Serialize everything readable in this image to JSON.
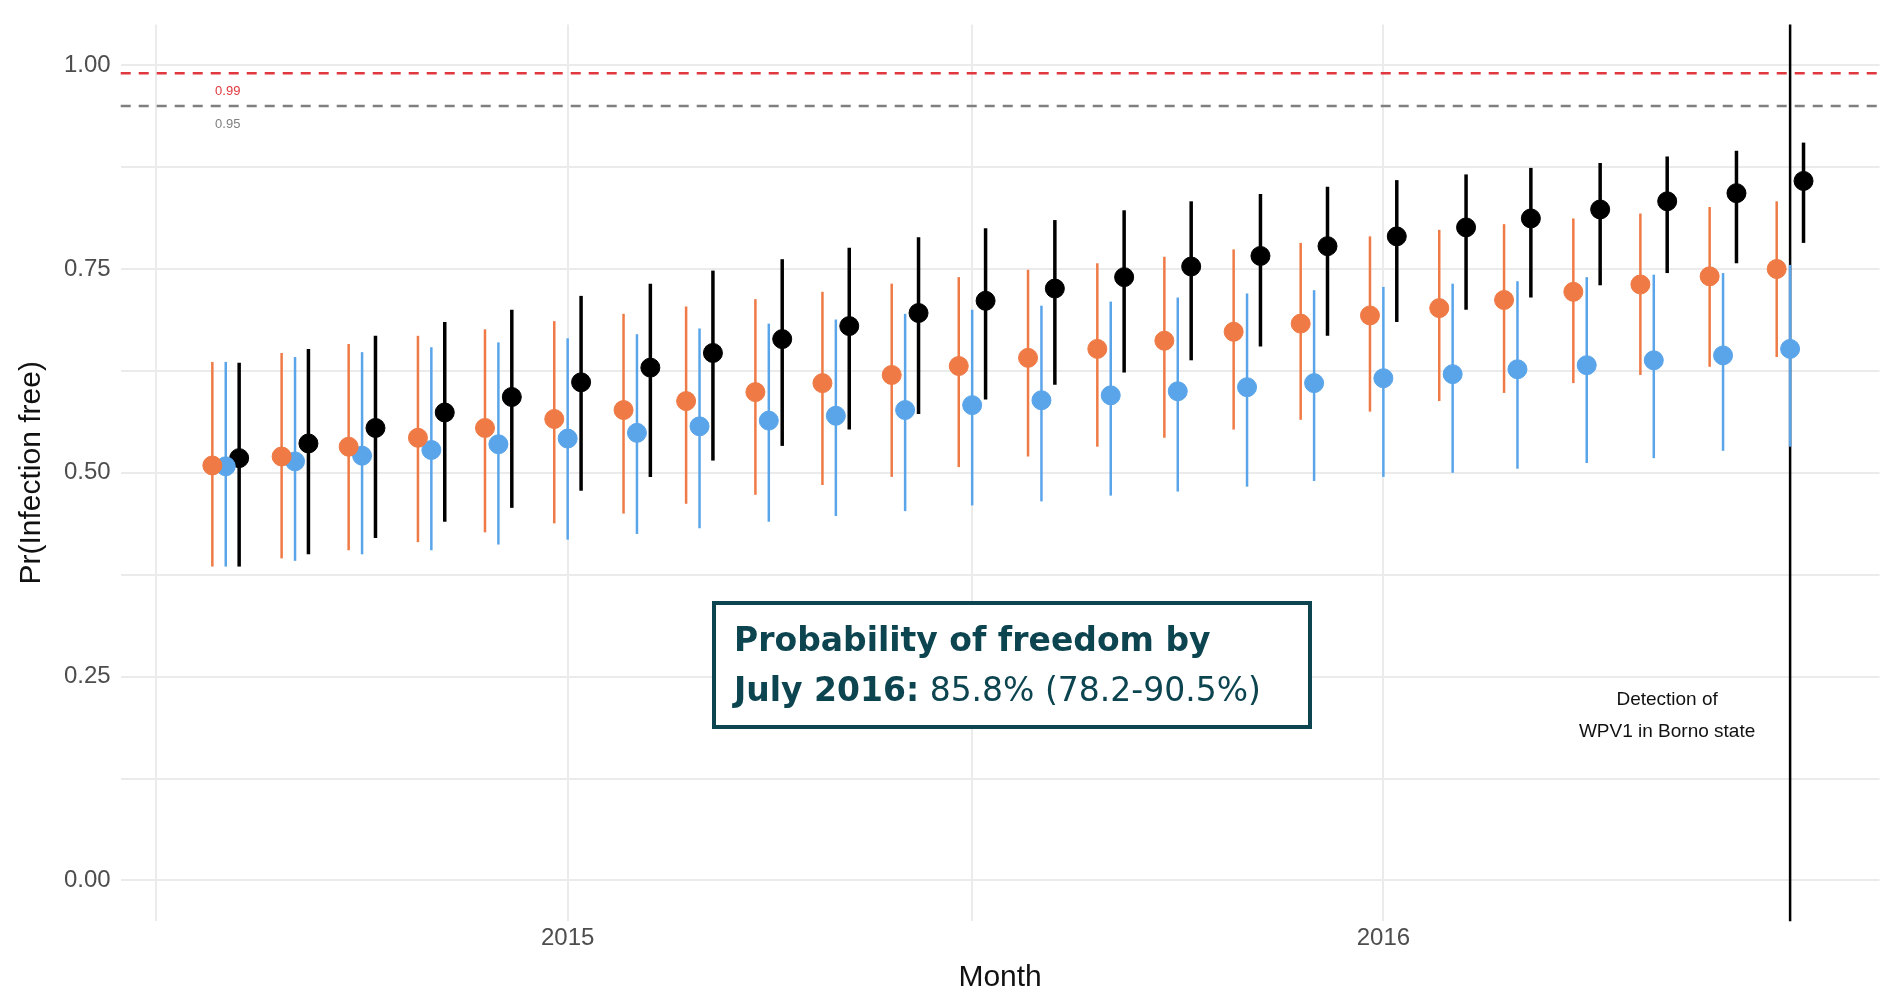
{
  "chart_data": {
    "type": "scatter",
    "xlabel": "Month",
    "ylabel": "Pr(Infection free)",
    "x": [
      "2014-08",
      "2014-09",
      "2014-10",
      "2014-11",
      "2014-12",
      "2015-01",
      "2015-02",
      "2015-03",
      "2015-04",
      "2015-05",
      "2015-06",
      "2015-07",
      "2015-08",
      "2015-09",
      "2015-10",
      "2015-11",
      "2015-12",
      "2016-01",
      "2016-02",
      "2016-03",
      "2016-04",
      "2016-05",
      "2016-06",
      "2016-07"
    ],
    "series": [
      {
        "color": "#ef7a45",
        "x": [
          "2014-07-26",
          "2014-08-26",
          "2014-09-25",
          "2014-10-26",
          "2014-11-25",
          "2014-12-26",
          "2015-01-26",
          "2015-02-23",
          "2015-03-26",
          "2015-04-25",
          "2015-05-26",
          "2015-06-25",
          "2015-07-26",
          "2015-08-26",
          "2015-09-25",
          "2015-10-26",
          "2015-11-25",
          "2015-12-26",
          "2016-01-26",
          "2016-02-24",
          "2016-03-26",
          "2016-04-25",
          "2016-05-26",
          "2016-06-25"
        ],
        "values": [
          0.509,
          0.52,
          0.532,
          0.543,
          0.555,
          0.566,
          0.577,
          0.588,
          0.599,
          0.61,
          0.62,
          0.631,
          0.641,
          0.652,
          0.662,
          0.673,
          0.683,
          0.693,
          0.702,
          0.712,
          0.722,
          0.731,
          0.741,
          0.75
        ],
        "errors": [
          [
            0.385,
            0.636
          ],
          [
            0.395,
            0.647
          ],
          [
            0.405,
            0.658
          ],
          [
            0.415,
            0.668
          ],
          [
            0.427,
            0.676
          ],
          [
            0.438,
            0.686
          ],
          [
            0.45,
            0.695
          ],
          [
            0.462,
            0.704
          ],
          [
            0.473,
            0.713
          ],
          [
            0.485,
            0.722
          ],
          [
            0.495,
            0.732
          ],
          [
            0.507,
            0.74
          ],
          [
            0.52,
            0.749
          ],
          [
            0.532,
            0.757
          ],
          [
            0.543,
            0.765
          ],
          [
            0.553,
            0.774
          ],
          [
            0.565,
            0.782
          ],
          [
            0.575,
            0.79
          ],
          [
            0.588,
            0.798
          ],
          [
            0.598,
            0.805
          ],
          [
            0.61,
            0.812
          ],
          [
            0.62,
            0.818
          ],
          [
            0.63,
            0.826
          ],
          [
            0.642,
            0.833
          ]
        ]
      },
      {
        "color": "#5aa5ea",
        "values": [
          0.508,
          0.514,
          0.521,
          0.528,
          0.535,
          0.542,
          0.549,
          0.557,
          0.564,
          0.57,
          0.577,
          0.583,
          0.589,
          0.595,
          0.6,
          0.605,
          0.61,
          0.616,
          0.621,
          0.627,
          0.632,
          0.638,
          0.644,
          0.652
        ],
        "errors": [
          [
            0.385,
            0.636
          ],
          [
            0.392,
            0.642
          ],
          [
            0.4,
            0.648
          ],
          [
            0.405,
            0.654
          ],
          [
            0.412,
            0.66
          ],
          [
            0.418,
            0.665
          ],
          [
            0.425,
            0.67
          ],
          [
            0.432,
            0.677
          ],
          [
            0.44,
            0.683
          ],
          [
            0.447,
            0.688
          ],
          [
            0.453,
            0.695
          ],
          [
            0.46,
            0.7
          ],
          [
            0.465,
            0.705
          ],
          [
            0.472,
            0.71
          ],
          [
            0.477,
            0.715
          ],
          [
            0.483,
            0.72
          ],
          [
            0.49,
            0.724
          ],
          [
            0.495,
            0.728
          ],
          [
            0.5,
            0.732
          ],
          [
            0.505,
            0.735
          ],
          [
            0.512,
            0.74
          ],
          [
            0.518,
            0.743
          ],
          [
            0.527,
            0.745
          ],
          [
            0.532,
            0.755
          ]
        ]
      },
      {
        "color": "#000000",
        "x": [
          "2014-08-07",
          "2014-09-07",
          "2014-10-07",
          "2014-11-07",
          "2014-12-07",
          "2015-01-07",
          "2015-02-07",
          "2015-03-07",
          "2015-04-07",
          "2015-05-07",
          "2015-06-07",
          "2015-07-07",
          "2015-08-07",
          "2015-09-07",
          "2015-10-07",
          "2015-11-07",
          "2015-12-07",
          "2016-01-07",
          "2016-02-07",
          "2016-03-07",
          "2016-04-07",
          "2016-05-07",
          "2016-06-07",
          "2016-07-07"
        ],
        "values": [
          0.518,
          0.536,
          0.555,
          0.574,
          0.593,
          0.611,
          0.629,
          0.647,
          0.664,
          0.68,
          0.696,
          0.711,
          0.726,
          0.74,
          0.753,
          0.766,
          0.778,
          0.79,
          0.801,
          0.812,
          0.823,
          0.833,
          0.843,
          0.858
        ],
        "errors": [
          [
            0.385,
            0.635
          ],
          [
            0.4,
            0.652
          ],
          [
            0.42,
            0.668
          ],
          [
            0.44,
            0.685
          ],
          [
            0.457,
            0.7
          ],
          [
            0.478,
            0.717
          ],
          [
            0.495,
            0.732
          ],
          [
            0.515,
            0.748
          ],
          [
            0.533,
            0.762
          ],
          [
            0.553,
            0.776
          ],
          [
            0.572,
            0.789
          ],
          [
            0.59,
            0.8
          ],
          [
            0.608,
            0.81
          ],
          [
            0.623,
            0.822
          ],
          [
            0.638,
            0.833
          ],
          [
            0.655,
            0.842
          ],
          [
            0.668,
            0.851
          ],
          [
            0.685,
            0.859
          ],
          [
            0.7,
            0.866
          ],
          [
            0.715,
            0.874
          ],
          [
            0.73,
            0.88
          ],
          [
            0.745,
            0.888
          ],
          [
            0.757,
            0.895
          ],
          [
            0.782,
            0.905
          ]
        ]
      }
    ],
    "xlim": [
      "2014-06-15",
      "2016-08-10"
    ],
    "xticks": [
      {
        "value": "2014-07",
        "label": null
      },
      {
        "value": "2015",
        "label": "2015"
      },
      {
        "value": "2015-07",
        "label": null
      },
      {
        "value": "2016",
        "label": "2016"
      },
      {
        "value": "2016-07",
        "label": null
      }
    ],
    "ylim": [
      -0.05,
      1.05
    ],
    "yticks": [
      {
        "value": 0,
        "label": "0.00"
      },
      {
        "value": 0.125,
        "label": null
      },
      {
        "value": 0.25,
        "label": "0.25"
      },
      {
        "value": 0.375,
        "label": null
      },
      {
        "value": 0.5,
        "label": "0.50"
      },
      {
        "value": 0.625,
        "label": null
      },
      {
        "value": 0.75,
        "label": "0.75"
      },
      {
        "value": 0.875,
        "label": null
      },
      {
        "value": 1,
        "label": "1.00"
      }
    ],
    "grid": true,
    "legend": false,
    "marker": "circle",
    "ref_lines": [
      {
        "axis": "y",
        "value": 0.99,
        "label": "0.99",
        "color": "#e0383e",
        "line_style": "dashed"
      },
      {
        "axis": "y",
        "value": 0.95,
        "label": "0.95",
        "color": "#7f7f7f",
        "line_style": "dashed"
      },
      {
        "axis": "x",
        "value": "2016-07",
        "label": "Detection of\nWPV1 in Borno state",
        "color": "#000000",
        "line_style": "solid"
      }
    ],
    "annotations": [
      "Probability of freedom by July 2016: 85.8% (78.2-90.5%)"
    ]
  }
}
